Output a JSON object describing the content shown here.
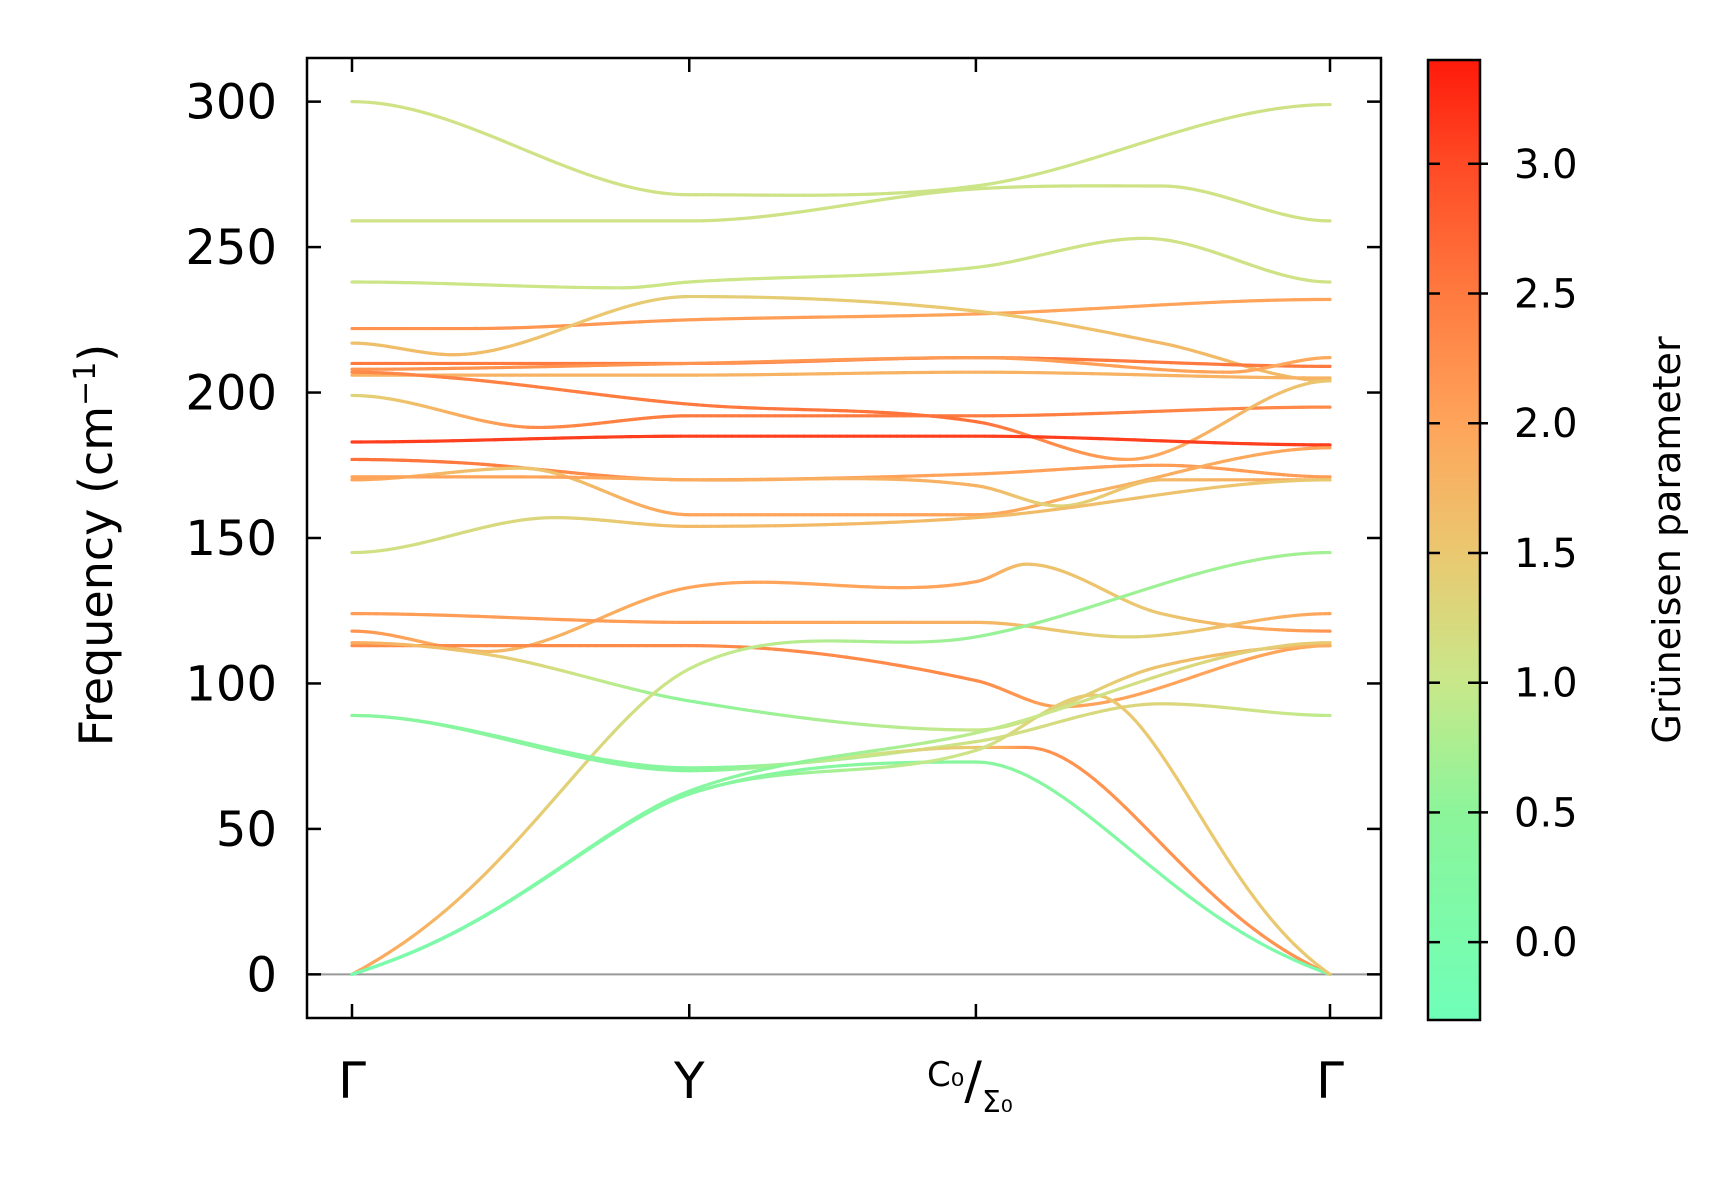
{
  "chart_data": {
    "type": "line",
    "title": "",
    "xlabel": "",
    "ylabel": "Frequency (cm⁻¹)",
    "ylabel_parts": {
      "main": "Frequency (cm",
      "sup": "−1",
      "close": ")"
    },
    "ylim": [
      -15,
      315
    ],
    "yticks": [
      0,
      50,
      100,
      150,
      200,
      250,
      300
    ],
    "xlim": [
      0,
      3
    ],
    "high_symmetry_points": [
      {
        "x": 0.0,
        "label": "Γ"
      },
      {
        "x": 1.0,
        "label": "Y"
      },
      {
        "x": 1.85,
        "label_sup": "C₀",
        "label_sub": "Σ₀",
        "slash": "/"
      },
      {
        "x": 2.9,
        "label": "Γ"
      }
    ],
    "zero_line": 0,
    "colorbar": {
      "label": "Grüneisen parameter",
      "range": [
        -0.3,
        3.4
      ],
      "ticks": [
        0.0,
        0.5,
        1.0,
        1.5,
        2.0,
        2.5,
        3.0
      ],
      "tick_labels": [
        "0.0",
        "0.5",
        "1.0",
        "1.5",
        "2.0",
        "2.5",
        "3.0"
      ],
      "colormap": [
        {
          "v": -0.3,
          "color": "#6fffb8"
        },
        {
          "v": 0.5,
          "color": "#8cf59a"
        },
        {
          "v": 1.0,
          "color": "#c8e88a"
        },
        {
          "v": 1.5,
          "color": "#eac870"
        },
        {
          "v": 2.0,
          "color": "#ffa45a"
        },
        {
          "v": 2.5,
          "color": "#ff7a3f"
        },
        {
          "v": 3.0,
          "color": "#ff4a25"
        },
        {
          "v": 3.4,
          "color": "#ff1a0a"
        }
      ]
    },
    "series": [
      {
        "name": "branch-1",
        "x": [
          0,
          1,
          1.85,
          2.9
        ],
        "y": [
          300,
          268,
          271,
          299
        ],
        "gamma": [
          1.1,
          1.1,
          1.05,
          1.1
        ]
      },
      {
        "name": "branch-2",
        "x": [
          0,
          1,
          1.85,
          2.4,
          2.9
        ],
        "y": [
          259,
          259,
          270,
          271,
          259
        ],
        "gamma": [
          1.1,
          1.1,
          1.05,
          1.1,
          1.1
        ]
      },
      {
        "name": "branch-3",
        "x": [
          0,
          0.8,
          1,
          1.85,
          2.35,
          2.9
        ],
        "y": [
          238,
          236,
          238,
          243,
          253,
          238
        ],
        "gamma": [
          1.05,
          1.05,
          1.05,
          1.05,
          1.1,
          1.1
        ]
      },
      {
        "name": "branch-4",
        "x": [
          0,
          0.35,
          1,
          1.85,
          2.9
        ],
        "y": [
          222,
          222,
          225,
          227,
          232
        ],
        "gamma": [
          2.2,
          2.2,
          2.1,
          2.0,
          2.0
        ]
      },
      {
        "name": "branch-5",
        "x": [
          0,
          0.3,
          1,
          1.85,
          2.4,
          2.9
        ],
        "y": [
          217,
          213,
          233,
          228,
          217,
          204
        ],
        "gamma": [
          1.6,
          1.7,
          1.4,
          1.5,
          1.7,
          1.7
        ]
      },
      {
        "name": "branch-6",
        "x": [
          0,
          1,
          1.85,
          2.9
        ],
        "y": [
          210,
          210,
          212,
          209
        ],
        "gamma": [
          2.5,
          2.5,
          2.5,
          2.5
        ]
      },
      {
        "name": "branch-7",
        "x": [
          0,
          1,
          1.85,
          2.6,
          2.9
        ],
        "y": [
          208,
          210,
          212,
          207,
          212
        ],
        "gamma": [
          2.2,
          2.2,
          2.1,
          2.0,
          1.9
        ]
      },
      {
        "name": "branch-8",
        "x": [
          0,
          1,
          1.85,
          2.9
        ],
        "y": [
          206,
          206,
          207,
          205
        ],
        "gamma": [
          1.8,
          1.8,
          1.8,
          1.8
        ]
      },
      {
        "name": "branch-9",
        "x": [
          0,
          0.55,
          1,
          1.85,
          2.9
        ],
        "y": [
          199,
          188,
          192,
          192,
          195
        ],
        "gamma": [
          1.3,
          2.3,
          2.5,
          2.5,
          2.3
        ]
      },
      {
        "name": "branch-10",
        "x": [
          0,
          0.3,
          1,
          1.85,
          2.3,
          2.9
        ],
        "y": [
          207,
          205,
          196,
          190,
          177,
          204
        ],
        "gamma": [
          2.3,
          2.4,
          2.5,
          2.6,
          2.0,
          1.5
        ]
      },
      {
        "name": "branch-11",
        "x": [
          0,
          1,
          1.85,
          2.9
        ],
        "y": [
          183,
          185,
          185,
          182
        ],
        "gamma": [
          3.1,
          3.1,
          3.1,
          3.1
        ]
      },
      {
        "name": "branch-12",
        "x": [
          0,
          0.3,
          1,
          1.85,
          2.4,
          2.9
        ],
        "y": [
          177,
          176,
          170,
          172,
          175,
          171
        ],
        "gamma": [
          2.6,
          2.5,
          2.1,
          2.0,
          2.1,
          2.1
        ]
      },
      {
        "name": "branch-13",
        "x": [
          0,
          0.5,
          1,
          1.85,
          2.2,
          2.9
        ],
        "y": [
          170,
          174,
          158,
          158,
          166,
          181
        ],
        "gamma": [
          2.0,
          1.5,
          2.0,
          2.0,
          1.8,
          2.0
        ]
      },
      {
        "name": "branch-14",
        "x": [
          0,
          0.5,
          1,
          1.85,
          2.1,
          2.4,
          2.9
        ],
        "y": [
          171,
          171,
          170,
          168,
          161,
          170,
          170
        ],
        "gamma": [
          2.0,
          2.0,
          1.9,
          1.8,
          1.3,
          1.7,
          2.0
        ]
      },
      {
        "name": "branch-15",
        "x": [
          0,
          0.6,
          1,
          1.85,
          2.9
        ],
        "y": [
          145,
          157,
          154,
          157,
          170
        ],
        "gamma": [
          1.1,
          1.3,
          1.7,
          1.7,
          1.5
        ]
      },
      {
        "name": "branch-16",
        "x": [
          0,
          0.4,
          1,
          1.85,
          2.0,
          2.4,
          2.9
        ],
        "y": [
          118,
          111,
          133,
          135,
          141,
          124,
          118
        ],
        "gamma": [
          2.2,
          1.7,
          2.0,
          2.0,
          1.6,
          1.5,
          2.2
        ]
      },
      {
        "name": "branch-17",
        "x": [
          0,
          1,
          1.85,
          2.3,
          2.9
        ],
        "y": [
          124,
          121,
          121,
          116,
          124
        ],
        "gamma": [
          2.1,
          2.1,
          1.8,
          1.3,
          2.0
        ]
      },
      {
        "name": "branch-18",
        "x": [
          0,
          1,
          1.85,
          2.1,
          2.9
        ],
        "y": [
          113,
          113,
          101,
          92,
          113
        ],
        "gamma": [
          2.3,
          2.3,
          2.3,
          2.0,
          2.0
        ]
      },
      {
        "name": "branch-19",
        "x": [
          0,
          0.4,
          1,
          1.85,
          2.4,
          2.9
        ],
        "y": [
          114,
          110,
          94,
          84,
          106,
          113
        ],
        "gamma": [
          1.9,
          1.5,
          0.5,
          1.0,
          1.6,
          1.9
        ]
      },
      {
        "name": "branch-20",
        "x": [
          0,
          1,
          1.85,
          2.9
        ],
        "y": [
          0,
          105,
          116,
          145
        ],
        "gamma": [
          2.0,
          1.0,
          0.6,
          0.7
        ]
      },
      {
        "name": "branch-21",
        "x": [
          0,
          1,
          1.85,
          2.4,
          2.9
        ],
        "y": [
          89,
          71,
          80,
          93,
          89
        ],
        "gamma": [
          0.4,
          0.4,
          1.1,
          1.3,
          0.9
        ]
      },
      {
        "name": "branch-22",
        "x": [
          0,
          1,
          1.85,
          2.0,
          2.9
        ],
        "y": [
          89,
          70,
          78,
          78,
          0
        ],
        "gamma": [
          0.4,
          0.4,
          1.5,
          2.2,
          2.2
        ]
      },
      {
        "name": "branch-23",
        "x": [
          0,
          1,
          1.85,
          2.9
        ],
        "y": [
          0,
          62,
          73,
          0
        ],
        "gamma": [
          0.0,
          0.3,
          0.4,
          0.0
        ]
      },
      {
        "name": "branch-24",
        "x": [
          0,
          1,
          1.85,
          2.2,
          2.9
        ],
        "y": [
          0,
          62,
          77,
          96,
          0
        ],
        "gamma": [
          0.0,
          0.3,
          1.1,
          1.5,
          1.5
        ]
      },
      {
        "name": "branch-25",
        "x": [
          0,
          1,
          1.85,
          2.9
        ],
        "y": [
          0,
          63,
          83,
          114
        ],
        "gamma": [
          0.0,
          0.3,
          0.9,
          1.5
        ]
      }
    ]
  }
}
